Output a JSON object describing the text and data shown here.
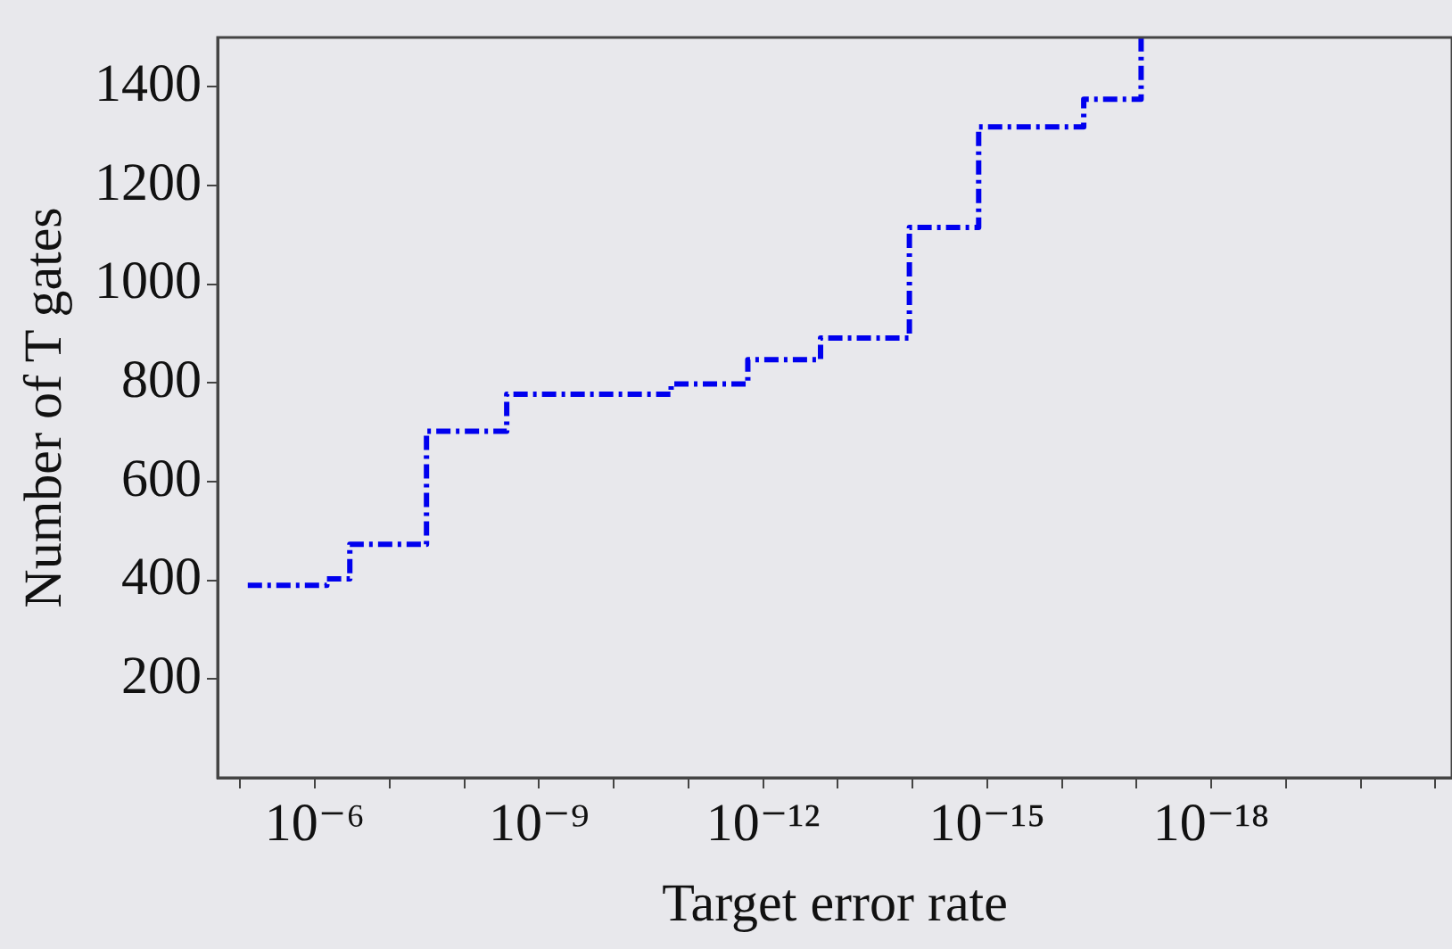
{
  "chart_data": {
    "type": "step",
    "xlabel": "Target error rate",
    "ylabel": "Number of T gates",
    "series": [
      {
        "color": "#0000ee",
        "x": [
          7.9e-06,
          6.9e-07,
          3.4e-07,
          3.2e-08,
          2.7e-09,
          1.7e-11,
          1.6e-12,
          1.7e-13,
          1.1e-14,
          1.3e-15,
          5.1e-17,
          8.7e-18
        ],
        "values": [
          390,
          403,
          473,
          702,
          777,
          798,
          847,
          891,
          1115,
          1319,
          1375,
          1500
        ]
      }
    ],
    "log": "x",
    "xlim": [
      2e-05,
      6e-22
    ],
    "ylim": [
      0,
      1500
    ],
    "xticks": [
      {
        "value": 1e-05,
        "label": null
      },
      {
        "value": 1e-06,
        "label": "10⁻⁶"
      },
      {
        "value": 1e-07,
        "label": null
      },
      {
        "value": 1e-08,
        "label": null
      },
      {
        "value": 1e-09,
        "label": "10⁻⁹"
      },
      {
        "value": 1e-10,
        "label": null
      },
      {
        "value": 1e-11,
        "label": null
      },
      {
        "value": 1e-12,
        "label": "10⁻¹²"
      },
      {
        "value": 1e-13,
        "label": null
      },
      {
        "value": 1e-14,
        "label": null
      },
      {
        "value": 1e-15,
        "label": "10⁻¹⁵"
      },
      {
        "value": 1e-16,
        "label": null
      },
      {
        "value": 1e-17,
        "label": null
      },
      {
        "value": 1e-18,
        "label": "10⁻¹⁸"
      },
      {
        "value": 1e-19,
        "label": null
      },
      {
        "value": 1e-20,
        "label": null
      },
      {
        "value": 1e-21,
        "label": null
      }
    ],
    "yticks": [
      200,
      400,
      600,
      800,
      1000,
      1200,
      1400
    ],
    "grid": false,
    "legend": false,
    "marker": "none",
    "line_style": "dashed"
  }
}
